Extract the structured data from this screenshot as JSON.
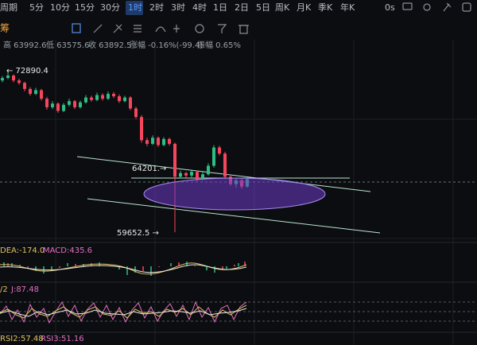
{
  "toolbar": {
    "period": "周期",
    "tabs": [
      "5分",
      "10分",
      "15分",
      "30分",
      "1时",
      "2时",
      "3时",
      "4时",
      "1日",
      "2日",
      "5日",
      "周K",
      "月K",
      "季K",
      "年K"
    ],
    "active": "1时",
    "timer": "0s"
  },
  "side_label": "筹",
  "info": {
    "high": "高 63992.6",
    "low": "低 63575.6",
    "close": "收 63892.5",
    "change": "涨幅 -0.16%(-99.4)",
    "amplitude": "振幅 0.65%"
  },
  "chart": {
    "annotations": {
      "max": "← 72890.4",
      "mid": "64201.→",
      "min": "59652.5 →"
    },
    "candles": [
      [
        72100,
        72450,
        71950,
        72300
      ],
      [
        72300,
        72890.4,
        72200,
        72500
      ],
      [
        72500,
        72600,
        71950,
        72100
      ],
      [
        72100,
        72250,
        71750,
        71900
      ],
      [
        71900,
        72000,
        71200,
        71400
      ],
      [
        71400,
        71550,
        70850,
        71000
      ],
      [
        71000,
        71500,
        70900,
        71300
      ],
      [
        71300,
        71400,
        70450,
        70600
      ],
      [
        70600,
        70750,
        69700,
        69900
      ],
      [
        69900,
        70400,
        69750,
        70200
      ],
      [
        70200,
        70300,
        69450,
        69600
      ],
      [
        69600,
        70250,
        69500,
        70100
      ],
      [
        70100,
        70600,
        69950,
        70400
      ],
      [
        70400,
        70500,
        69750,
        69900
      ],
      [
        69900,
        70450,
        69800,
        70300
      ],
      [
        70300,
        70900,
        70200,
        70700
      ],
      [
        70700,
        70850,
        70350,
        70500
      ],
      [
        70500,
        71100,
        70400,
        70900
      ],
      [
        70900,
        71050,
        70450,
        70600
      ],
      [
        70600,
        71200,
        70500,
        71000
      ],
      [
        71000,
        71150,
        70650,
        70800
      ],
      [
        70800,
        70950,
        70250,
        70400
      ],
      [
        70400,
        70850,
        70300,
        70700
      ],
      [
        70700,
        70800,
        69650,
        69800
      ],
      [
        69800,
        69950,
        68950,
        69100
      ],
      [
        69100,
        69250,
        67000,
        67200
      ],
      [
        67200,
        67400,
        66700,
        66900
      ],
      [
        66900,
        67600,
        66800,
        67400
      ],
      [
        67400,
        67500,
        66650,
        66800
      ],
      [
        66800,
        67450,
        66700,
        67300
      ],
      [
        67300,
        67400,
        66750,
        66900
      ],
      [
        66900,
        67000,
        59652.5,
        64200
      ],
      [
        64200,
        64700,
        64050,
        64500
      ],
      [
        64500,
        64600,
        64100,
        64300
      ],
      [
        64300,
        64800,
        64150,
        64600
      ],
      [
        64600,
        64700,
        63850,
        64000
      ],
      [
        64000,
        64600,
        63900,
        64400
      ],
      [
        64400,
        65300,
        64300,
        65100
      ],
      [
        65100,
        66800,
        64950,
        66600
      ],
      [
        66600,
        66750,
        65950,
        66100
      ],
      [
        66100,
        66250,
        64050,
        64200
      ],
      [
        64200,
        64350,
        63450,
        63600
      ],
      [
        63600,
        64100,
        63300,
        63900
      ],
      [
        63900,
        64050,
        63200,
        63400
      ],
      [
        63400,
        64150,
        63300,
        64000
      ]
    ]
  },
  "macd": {
    "dea": "DEA:-174.0",
    "macd": "MACD:435.6"
  },
  "kdj": {
    "k": "/2",
    "j": "J:87.48"
  },
  "rsi": {
    "rsi2": "RSI2:57.48",
    "rsi3": "RSI3:51.16"
  }
}
